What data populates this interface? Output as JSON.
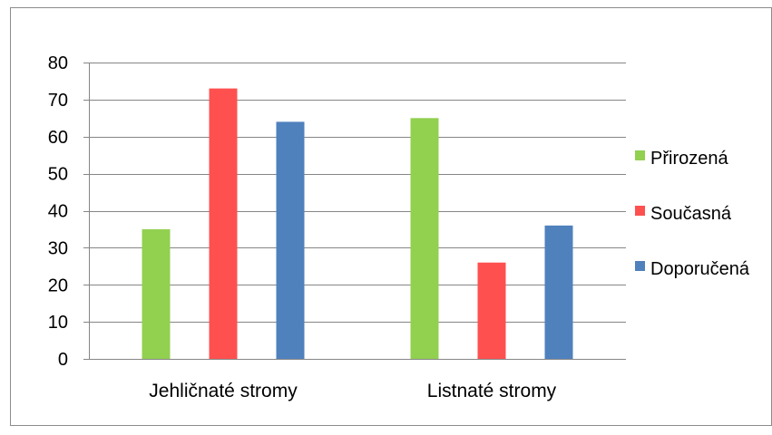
{
  "chart_data": {
    "type": "bar",
    "categories": [
      "Jehličnaté stromy",
      "Listnaté stromy"
    ],
    "series": [
      {
        "name": "Přirozená",
        "values": [
          35,
          65
        ],
        "color": "#92D050"
      },
      {
        "name": "Současná",
        "values": [
          73,
          26
        ],
        "color": "#FF5050"
      },
      {
        "name": "Doporučená",
        "values": [
          64,
          36
        ],
        "color": "#4F81BD"
      }
    ],
    "ylim": [
      0,
      80
    ],
    "yticks": [
      0,
      10,
      20,
      30,
      40,
      50,
      60,
      70,
      80
    ],
    "grid": true,
    "legend": "right"
  }
}
